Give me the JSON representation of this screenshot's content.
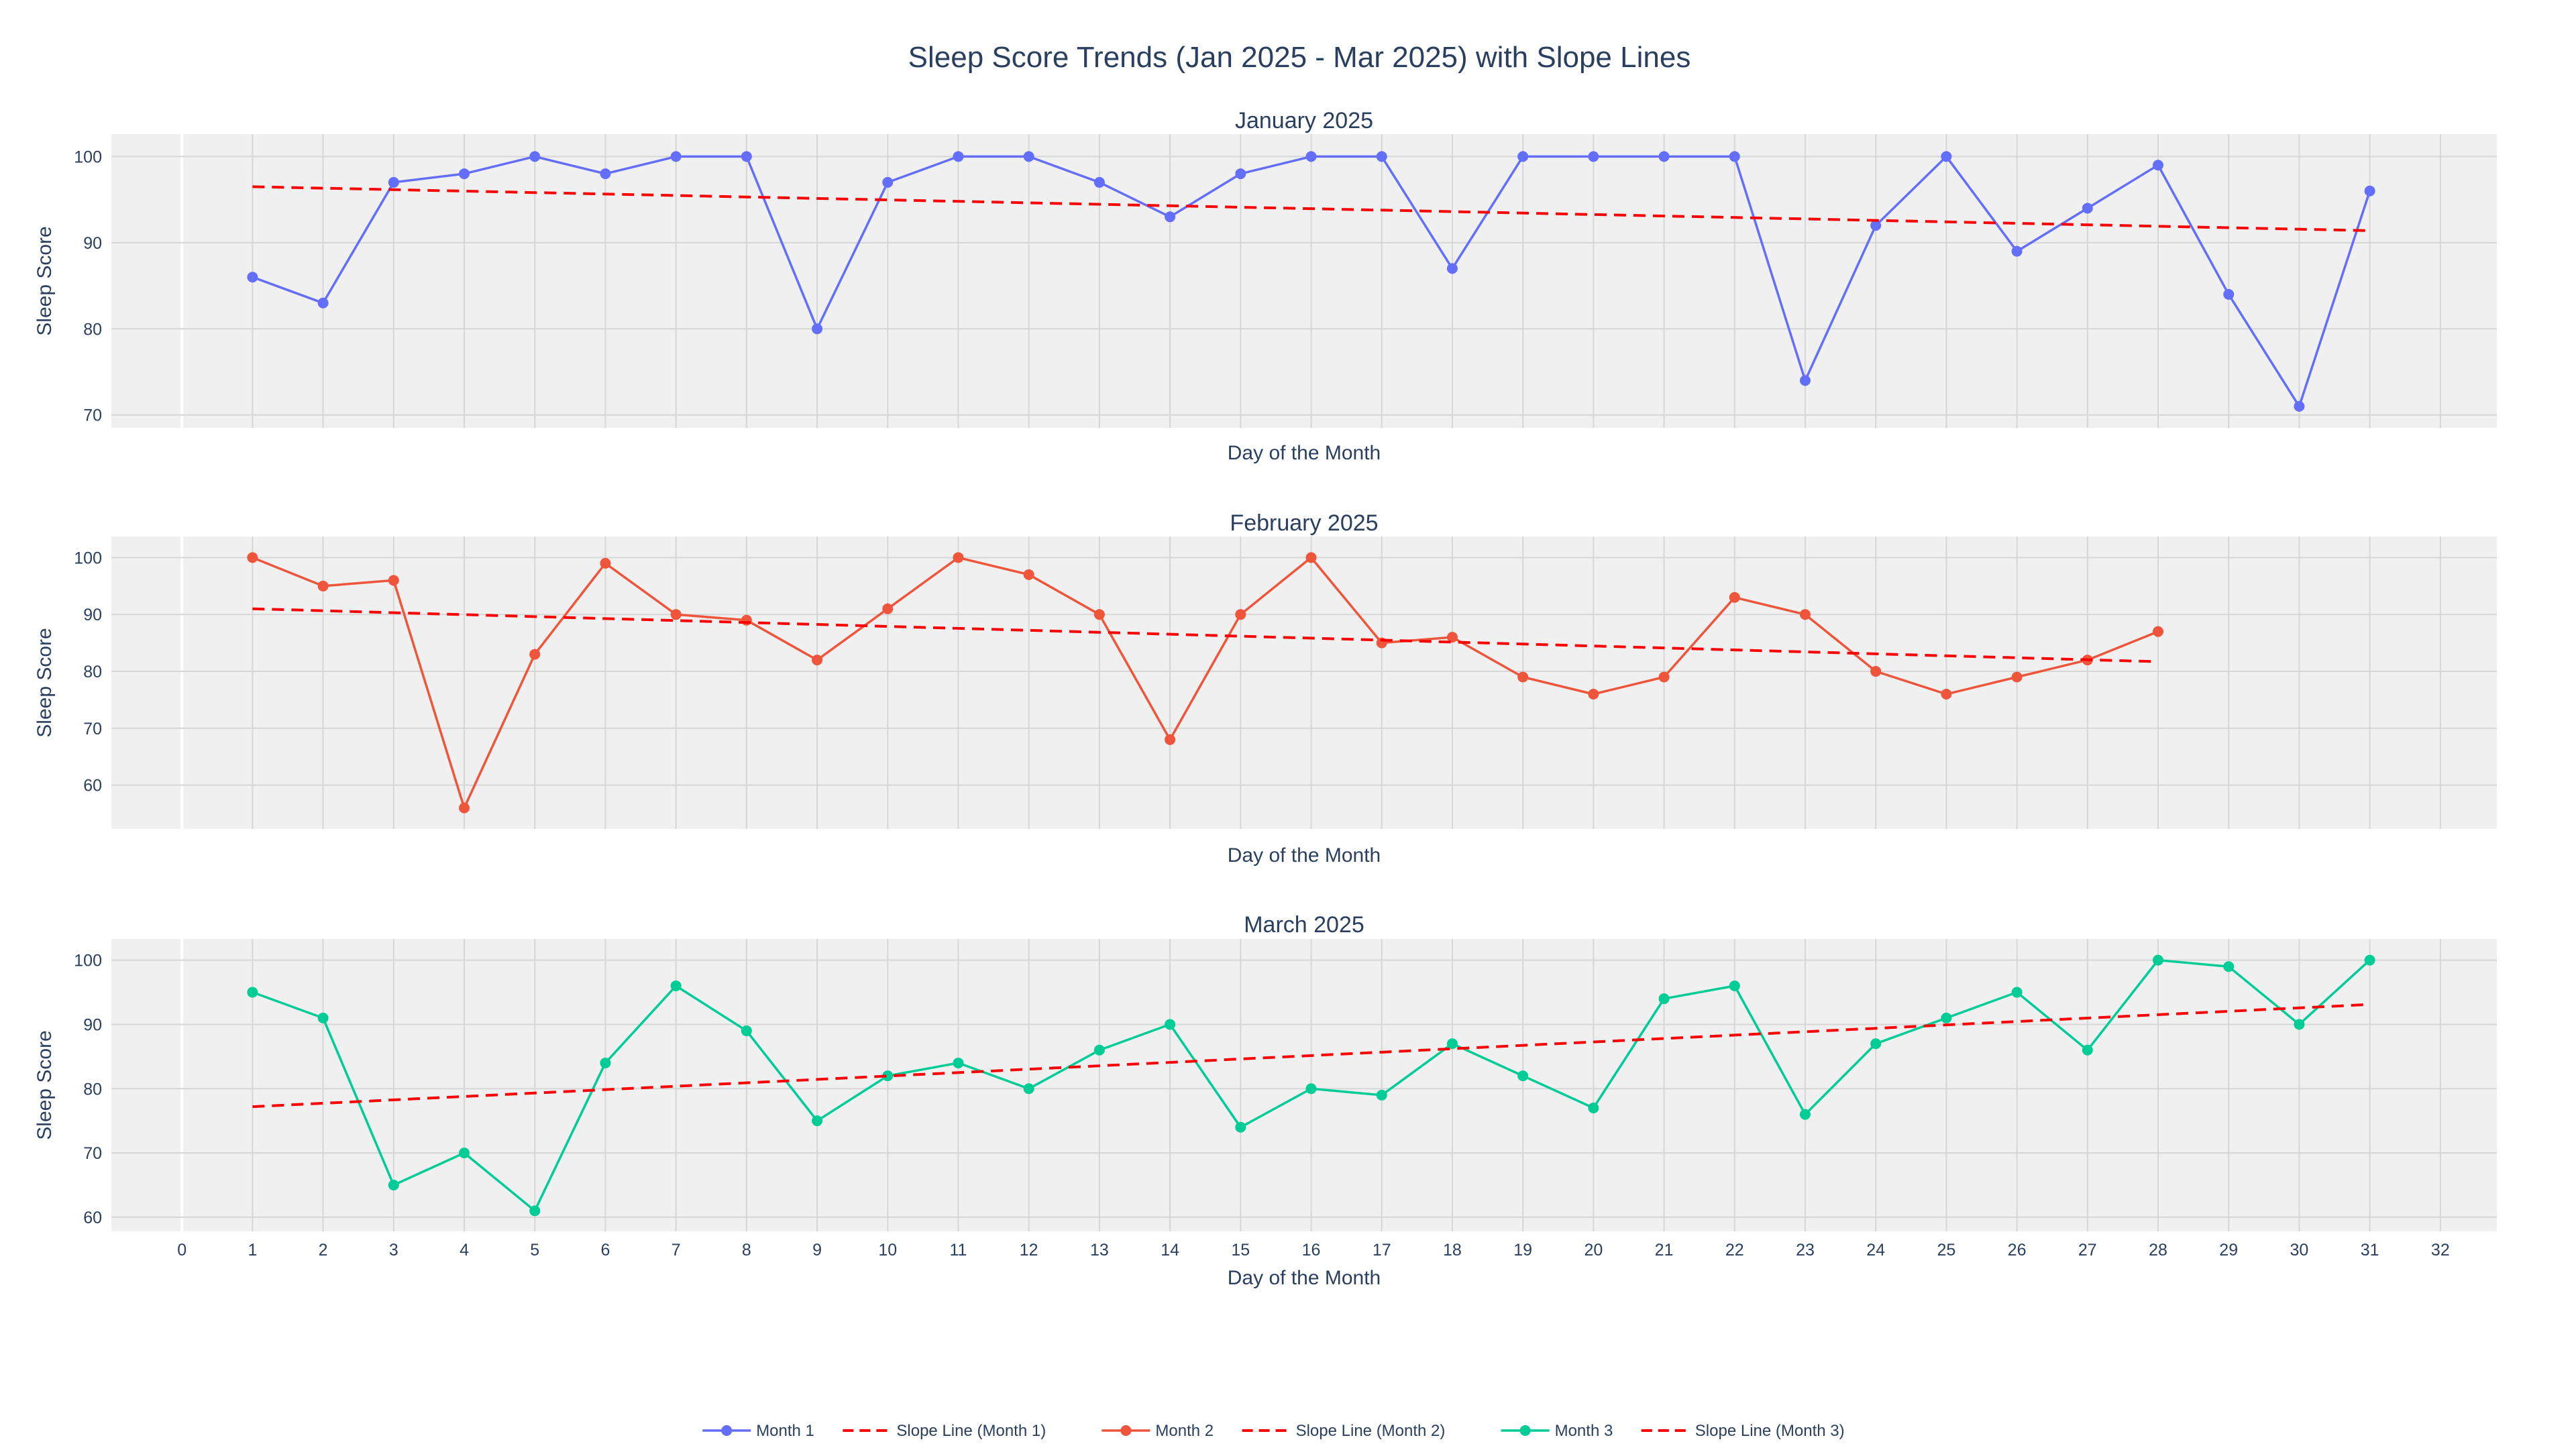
{
  "chart_data": {
    "type": "line",
    "title": "Sleep Score Trends (Jan 2025 - Mar 2025) with Slope Lines",
    "xlabel": "Day of the Month",
    "ylabel": "Sleep Score",
    "xlim": [
      -1,
      32.8
    ],
    "xticks": [
      0,
      1,
      2,
      3,
      4,
      5,
      6,
      7,
      8,
      9,
      10,
      11,
      12,
      13,
      14,
      15,
      16,
      17,
      18,
      19,
      20,
      21,
      22,
      23,
      24,
      25,
      26,
      27,
      28,
      29,
      30,
      31,
      32
    ],
    "shared_x": true,
    "grid": true,
    "legend_position": "bottom-center",
    "legend_orientation": "horizontal",
    "colors": {
      "plot_background": "#f0f0f0",
      "grid": "#d6d6d6",
      "text": "#2a3f5f",
      "month1": "#636efa",
      "month2": "#ef553b",
      "month3": "#00cc96",
      "slope": "#ff0000"
    },
    "subplots": [
      {
        "title": "January 2025",
        "ylim": [
          68.5,
          102.6
        ],
        "yticks": [
          70,
          80,
          90,
          100
        ],
        "series": [
          {
            "name": "Month 1",
            "kind": "lines+markers",
            "color": "#636efa",
            "x": [
              1,
              2,
              3,
              4,
              5,
              6,
              7,
              8,
              9,
              10,
              11,
              12,
              13,
              14,
              15,
              16,
              17,
              18,
              19,
              20,
              21,
              22,
              23,
              24,
              25,
              26,
              27,
              28,
              29,
              30,
              31
            ],
            "y": [
              86,
              83,
              97,
              98,
              100,
              98,
              100,
              100,
              80,
              97,
              100,
              100,
              97,
              93,
              98,
              100,
              100,
              87,
              100,
              100,
              100,
              100,
              74,
              92,
              100,
              89,
              94,
              99,
              84,
              71,
              96
            ]
          },
          {
            "name": "Slope Line (Month 1)",
            "kind": "dash",
            "color": "#ff0000",
            "x": [
              1,
              31
            ],
            "y": [
              96.5,
              91.4
            ]
          }
        ]
      },
      {
        "title": "February 2025",
        "ylim": [
          52.3,
          103.7
        ],
        "yticks": [
          60,
          70,
          80,
          90,
          100
        ],
        "series": [
          {
            "name": "Month 2",
            "kind": "lines+markers",
            "color": "#ef553b",
            "x": [
              1,
              2,
              3,
              4,
              5,
              6,
              7,
              8,
              9,
              10,
              11,
              12,
              13,
              14,
              15,
              16,
              17,
              18,
              19,
              20,
              21,
              22,
              23,
              24,
              25,
              26,
              27,
              28
            ],
            "y": [
              100,
              95,
              96,
              56,
              83,
              99,
              90,
              89,
              82,
              91,
              100,
              97,
              90,
              68,
              90,
              100,
              85,
              86,
              79,
              76,
              79,
              93,
              90,
              80,
              76,
              79,
              82,
              87
            ]
          },
          {
            "name": "Slope Line (Month 2)",
            "kind": "dash",
            "color": "#ff0000",
            "x": [
              1,
              28
            ],
            "y": [
              91.0,
              81.7
            ]
          }
        ]
      },
      {
        "title": "March 2025",
        "ylim": [
          57.8,
          103.3
        ],
        "yticks": [
          60,
          70,
          80,
          90,
          100
        ],
        "series": [
          {
            "name": "Month 3",
            "kind": "lines+markers",
            "color": "#00cc96",
            "x": [
              1,
              2,
              3,
              4,
              5,
              6,
              7,
              8,
              9,
              10,
              11,
              12,
              13,
              14,
              15,
              16,
              17,
              18,
              19,
              20,
              21,
              22,
              23,
              24,
              25,
              26,
              27,
              28,
              29,
              30,
              31
            ],
            "y": [
              95,
              91,
              65,
              70,
              61,
              84,
              96,
              89,
              75,
              82,
              84,
              80,
              86,
              90,
              74,
              80,
              79,
              87,
              82,
              77,
              94,
              96,
              76,
              87,
              91,
              95,
              86,
              100,
              99,
              90,
              100
            ]
          },
          {
            "name": "Slope Line (Month 3)",
            "kind": "dash",
            "color": "#ff0000",
            "x": [
              1,
              31
            ],
            "y": [
              77.2,
              93.1
            ]
          }
        ]
      }
    ],
    "legend": [
      {
        "label": "Month 1",
        "color": "#636efa",
        "kind": "lines+markers"
      },
      {
        "label": "Slope Line (Month 1)",
        "color": "#ff0000",
        "kind": "dash"
      },
      {
        "label": "Month 2",
        "color": "#ef553b",
        "kind": "lines+markers"
      },
      {
        "label": "Slope Line (Month 2)",
        "color": "#ff0000",
        "kind": "dash"
      },
      {
        "label": "Month 3",
        "color": "#00cc96",
        "kind": "lines+markers"
      },
      {
        "label": "Slope Line (Month 3)",
        "color": "#ff0000",
        "kind": "dash"
      }
    ]
  }
}
